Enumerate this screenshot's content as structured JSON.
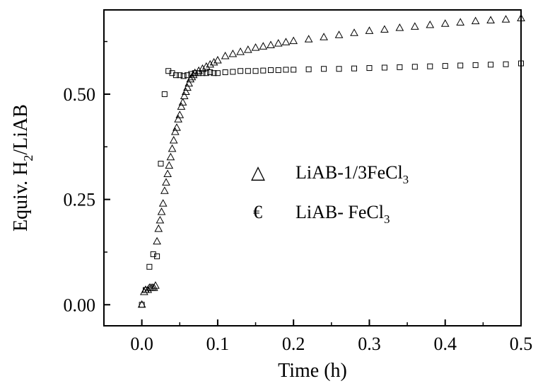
{
  "chart_data": {
    "type": "scatter",
    "title": "",
    "xlabel": "Time (h)",
    "ylabel": {
      "main": "Equiv. H",
      "sub": "2",
      "tail": "/LiAB"
    },
    "xlim": [
      -0.05,
      0.5
    ],
    "ylim": [
      -0.05,
      0.7
    ],
    "x_ticks": [
      "0.0",
      "0.1",
      "0.2",
      "0.3",
      "0.4",
      "0.5"
    ],
    "y_ticks": [
      "0.00",
      "0.25",
      "0.50"
    ],
    "legend": {
      "placement": "center",
      "entries": [
        {
          "symbol": "triangle",
          "glyph": "△",
          "text": "LiAB-1/3FeCl",
          "sub": "3"
        },
        {
          "symbol": "square",
          "glyph": "€",
          "text": "LiAB- FeCl",
          "sub": "3"
        }
      ]
    },
    "series": [
      {
        "name": "LiAB-1/3FeCl3",
        "marker": "triangle",
        "x": [
          0.0,
          0.003,
          0.005,
          0.008,
          0.01,
          0.012,
          0.014,
          0.016,
          0.018,
          0.02,
          0.022,
          0.024,
          0.026,
          0.028,
          0.03,
          0.032,
          0.034,
          0.036,
          0.038,
          0.04,
          0.042,
          0.044,
          0.046,
          0.048,
          0.05,
          0.052,
          0.054,
          0.056,
          0.058,
          0.06,
          0.062,
          0.064,
          0.066,
          0.068,
          0.07,
          0.075,
          0.08,
          0.085,
          0.09,
          0.095,
          0.1,
          0.11,
          0.12,
          0.13,
          0.14,
          0.15,
          0.16,
          0.17,
          0.18,
          0.19,
          0.2,
          0.22,
          0.24,
          0.26,
          0.28,
          0.3,
          0.32,
          0.34,
          0.36,
          0.38,
          0.4,
          0.42,
          0.44,
          0.46,
          0.48,
          0.5
        ],
        "y": [
          0.0,
          0.03,
          0.035,
          0.035,
          0.04,
          0.04,
          0.04,
          0.04,
          0.045,
          0.15,
          0.18,
          0.2,
          0.22,
          0.24,
          0.27,
          0.29,
          0.31,
          0.33,
          0.35,
          0.37,
          0.39,
          0.41,
          0.42,
          0.44,
          0.45,
          0.47,
          0.48,
          0.495,
          0.505,
          0.515,
          0.525,
          0.535,
          0.54,
          0.545,
          0.55,
          0.555,
          0.56,
          0.565,
          0.57,
          0.575,
          0.58,
          0.59,
          0.595,
          0.6,
          0.605,
          0.61,
          0.613,
          0.616,
          0.62,
          0.623,
          0.626,
          0.63,
          0.635,
          0.64,
          0.645,
          0.65,
          0.653,
          0.657,
          0.66,
          0.664,
          0.667,
          0.67,
          0.673,
          0.675,
          0.677,
          0.68
        ]
      },
      {
        "name": "LiAB- FeCl3",
        "marker": "square",
        "x": [
          0.0,
          0.005,
          0.01,
          0.015,
          0.02,
          0.025,
          0.03,
          0.035,
          0.04,
          0.045,
          0.05,
          0.055,
          0.06,
          0.065,
          0.07,
          0.075,
          0.08,
          0.085,
          0.09,
          0.095,
          0.1,
          0.11,
          0.12,
          0.13,
          0.14,
          0.15,
          0.16,
          0.17,
          0.18,
          0.19,
          0.2,
          0.22,
          0.24,
          0.26,
          0.28,
          0.3,
          0.32,
          0.34,
          0.36,
          0.38,
          0.4,
          0.42,
          0.44,
          0.46,
          0.48,
          0.5
        ],
        "y": [
          0.0,
          0.035,
          0.09,
          0.12,
          0.115,
          0.335,
          0.5,
          0.555,
          0.55,
          0.545,
          0.545,
          0.543,
          0.545,
          0.548,
          0.55,
          0.55,
          0.55,
          0.55,
          0.552,
          0.55,
          0.55,
          0.552,
          0.553,
          0.555,
          0.555,
          0.555,
          0.556,
          0.557,
          0.557,
          0.558,
          0.558,
          0.559,
          0.56,
          0.56,
          0.561,
          0.562,
          0.563,
          0.564,
          0.565,
          0.566,
          0.567,
          0.568,
          0.569,
          0.57,
          0.571,
          0.573
        ]
      }
    ]
  }
}
